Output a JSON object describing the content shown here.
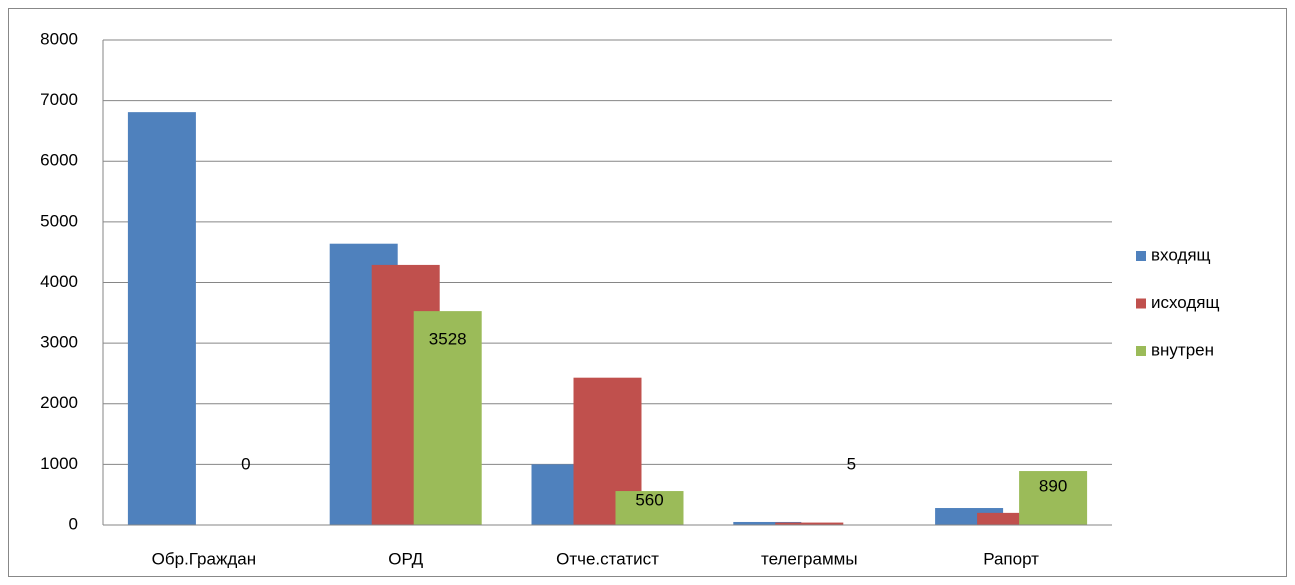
{
  "chart_data": {
    "type": "bar",
    "categories": [
      "Обр.Граждан",
      "ОРД",
      "Отче.статист",
      "телеграммы",
      "Рапорт"
    ],
    "series": [
      {
        "name": "входящ",
        "color": "#4f81bd",
        "values": [
          6810,
          4640,
          1000,
          50,
          280
        ]
      },
      {
        "name": "исходящ",
        "color": "#c0504d",
        "values": [
          0,
          4290,
          2430,
          40,
          200
        ]
      },
      {
        "name": "внутрен",
        "color": "#9bbb59",
        "values": [
          0,
          3528,
          560,
          5,
          890
        ],
        "show_labels": true
      }
    ],
    "ylim": [
      0,
      8000
    ],
    "yticks": [
      0,
      1000,
      2000,
      3000,
      4000,
      5000,
      6000,
      7000,
      8000
    ],
    "grid": true,
    "legend": "right"
  }
}
